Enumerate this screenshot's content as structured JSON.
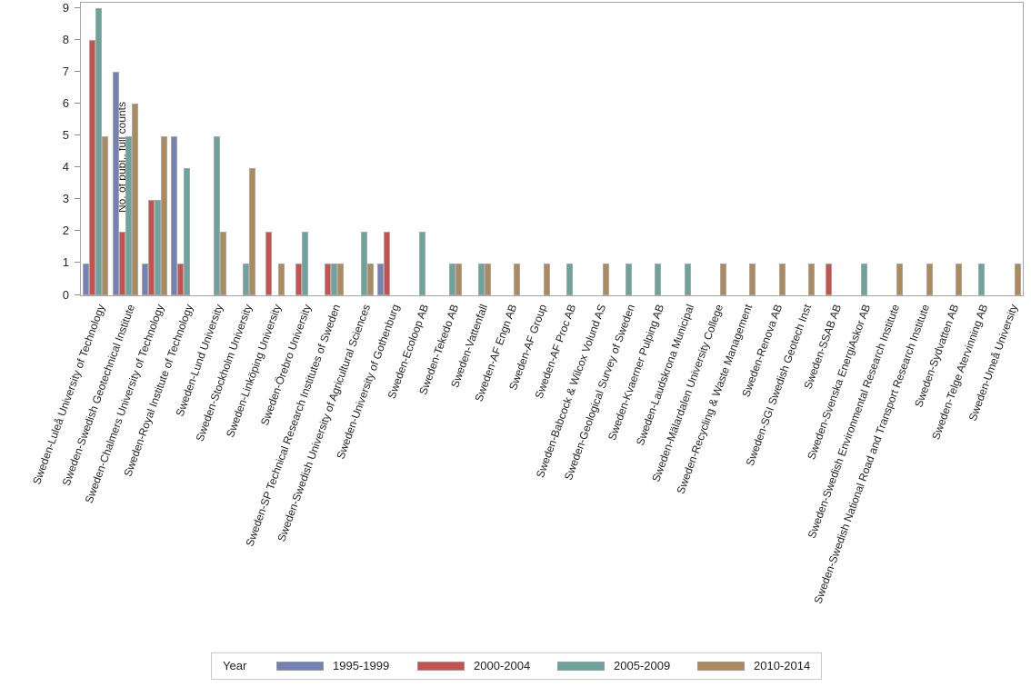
{
  "chart_data": {
    "type": "bar",
    "title": "",
    "xlabel": "",
    "ylabel": "No. of publ., full counts",
    "ylim": [
      0,
      9
    ],
    "yticks": [
      0,
      1,
      2,
      3,
      4,
      5,
      6,
      7,
      8,
      9
    ],
    "grid": false,
    "legend_title": "Year",
    "legend_position": "bottom",
    "categories": [
      "Sweden-Luleå University of Technology",
      "Sweden-Swedish Geotechnical Institute",
      "Sweden-Chalmers University of Technology",
      "Sweden-Royal Institute of Technology",
      "Sweden-Lund University",
      "Sweden-Stockholm University",
      "Sweden-Linköping University",
      "Sweden-Örebro University",
      "Sweden-SP Technical Research Institutes of Sweden",
      "Sweden-Swedish University of Agricultural Sciences",
      "Sweden-University of Gothenburg",
      "Sweden-Ecoloop AB",
      "Sweden-Tekedo AB",
      "Sweden-Vattenfall",
      "Sweden-AF Engn AB",
      "Sweden-AF Group",
      "Sweden-AF Proc AB",
      "Sweden-Babcock & Wilcox Volund AS",
      "Sweden-Geological Survey of Sweden",
      "Sweden-Kvaerner Pulping AB",
      "Sweden-Laudskrona Municipal",
      "Sweden-Mälardalen University College",
      "Sweden-Recycling & Waste Management",
      "Sweden-Renova AB",
      "Sweden-SGI Swedish Geotech Inst",
      "Sweden-SSAB AB",
      "Sweden-Svenska EnergiAskor AB",
      "Sweden-Swedish Environmental Research Institute",
      "Sweden-Swedish National Road and Transport Research Institute",
      "Sweden-Sydvatten AB",
      "Sweden-Telge Atervinning AB",
      "Sweden-Umeå University"
    ],
    "series": [
      {
        "name": "1995-1999",
        "color": "#7381B7",
        "values": [
          1,
          7,
          1,
          5,
          0,
          0,
          0,
          0,
          0,
          0,
          1,
          0,
          0,
          0,
          0,
          0,
          0,
          0,
          0,
          0,
          0,
          0,
          0,
          0,
          0,
          0,
          0,
          0,
          0,
          0,
          0,
          0
        ]
      },
      {
        "name": "2000-2004",
        "color": "#C9514D",
        "values": [
          8,
          2,
          3,
          1,
          0,
          0,
          2,
          1,
          1,
          0,
          2,
          0,
          0,
          0,
          0,
          0,
          0,
          0,
          0,
          0,
          0,
          0,
          0,
          0,
          0,
          1,
          0,
          0,
          0,
          0,
          0,
          0
        ]
      },
      {
        "name": "2005-2009",
        "color": "#6AA49D",
        "values": [
          9,
          5,
          3,
          4,
          5,
          1,
          0,
          2,
          1,
          2,
          0,
          2,
          1,
          1,
          0,
          0,
          1,
          0,
          1,
          1,
          1,
          0,
          0,
          0,
          0,
          0,
          1,
          0,
          0,
          0,
          1,
          0
        ]
      },
      {
        "name": "2010-2014",
        "color": "#AC8A5B",
        "values": [
          5,
          6,
          5,
          0,
          2,
          4,
          1,
          0,
          1,
          1,
          0,
          0,
          1,
          1,
          1,
          1,
          0,
          1,
          0,
          0,
          0,
          1,
          1,
          1,
          1,
          0,
          0,
          1,
          1,
          1,
          0,
          1
        ]
      }
    ],
    "bar_outline_color": "#A8A8A8",
    "axis_color": "#A6A6A6"
  }
}
